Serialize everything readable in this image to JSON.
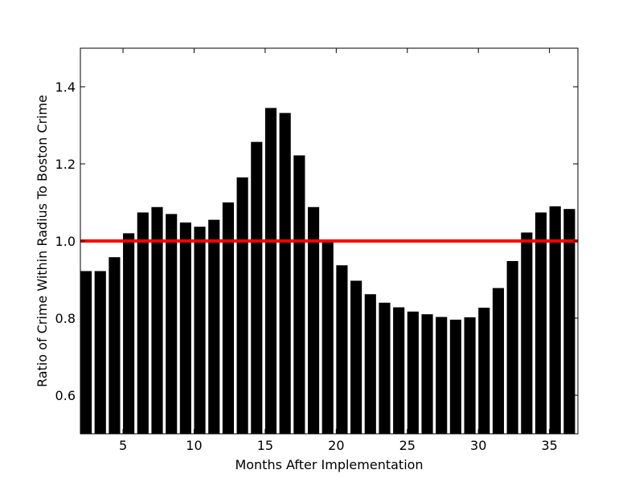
{
  "chart_data": {
    "type": "bar",
    "title": "",
    "xlabel": "Months After Implementation",
    "ylabel": "Ratio of Crime Within Radius To Boston Crime",
    "xlim": [
      2,
      37
    ],
    "ylim": [
      0.5,
      1.5
    ],
    "x_ticks": [
      5,
      10,
      15,
      20,
      25,
      30,
      35
    ],
    "y_ticks": [
      0.6,
      0.8,
      1.0,
      1.2,
      1.4
    ],
    "x_tick_labels": [
      "5",
      "10",
      "15",
      "20",
      "25",
      "30",
      "35"
    ],
    "y_tick_labels": [
      "0.6",
      "0.8",
      "1.0",
      "1.2",
      "1.4"
    ],
    "bar_width": 0.8,
    "x": [
      2,
      3,
      4,
      5,
      6,
      7,
      8,
      9,
      10,
      11,
      12,
      13,
      14,
      15,
      16,
      17,
      18,
      19,
      20,
      21,
      22,
      23,
      24,
      25,
      26,
      27,
      28,
      29,
      30,
      31,
      32,
      33,
      34,
      35,
      36
    ],
    "values": [
      0.922,
      0.922,
      0.958,
      1.02,
      1.074,
      1.088,
      1.07,
      1.048,
      1.037,
      1.055,
      1.1,
      1.165,
      1.257,
      1.345,
      1.332,
      1.222,
      1.088,
      1.002,
      0.937,
      0.897,
      0.862,
      0.84,
      0.828,
      0.817,
      0.81,
      0.803,
      0.796,
      0.802,
      0.827,
      0.878,
      0.948,
      1.022,
      1.074,
      1.09,
      1.083
    ],
    "bar_color": "#000000",
    "reference_line": {
      "y": 1.0,
      "color": "#ff0000"
    },
    "grid": false,
    "legend": "none"
  }
}
